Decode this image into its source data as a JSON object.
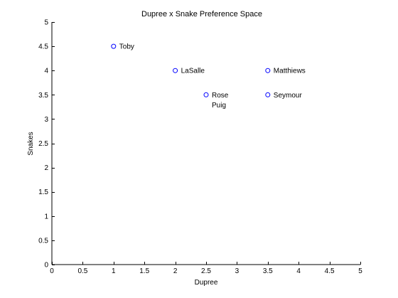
{
  "chart_data": {
    "type": "scatter",
    "title": "Dupree x Snake Preference Space",
    "xlabel": "Dupree",
    "ylabel": "Snakes",
    "xlim": [
      0,
      5
    ],
    "ylim": [
      0,
      5
    ],
    "xticks": [
      0,
      0.5,
      1,
      1.5,
      2,
      2.5,
      3,
      3.5,
      4,
      4.5,
      5
    ],
    "yticks": [
      0,
      0.5,
      1,
      1.5,
      2,
      2.5,
      3,
      3.5,
      4,
      4.5,
      5
    ],
    "grid": false,
    "marker_color": "#0000ff",
    "points": [
      {
        "label": "Toby",
        "x": 1,
        "y": 4.5
      },
      {
        "label": "LaSalle",
        "x": 2,
        "y": 4
      },
      {
        "label": "Matthiews",
        "x": 3.5,
        "y": 4
      },
      {
        "label": "Rose",
        "x": 2.5,
        "y": 3.5
      },
      {
        "label": "Puig",
        "x": 2.5,
        "y": 3.5
      },
      {
        "label": "Seymour",
        "x": 3.5,
        "y": 3.5
      }
    ]
  }
}
